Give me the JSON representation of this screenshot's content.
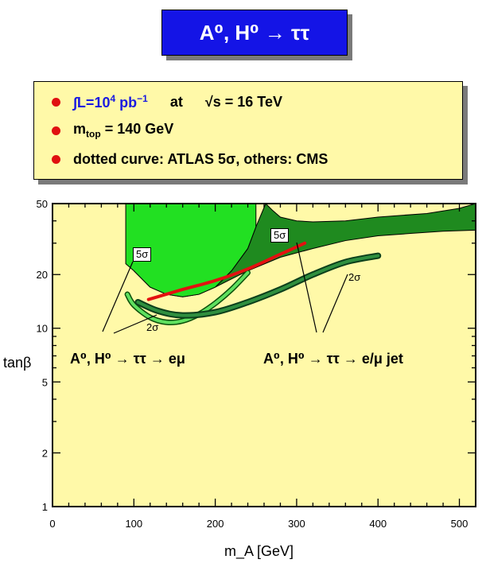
{
  "title": "A⁰, H⁰ → ττ",
  "info": {
    "line1_lumi": "∫L=10",
    "line1_lumi_exp": "4",
    "line1_unit": "pb",
    "line1_unit_exp": "−1",
    "line1_at": "at",
    "line1_energy": "√s = 16 TeV",
    "line2_m": "m",
    "line2_sub": "top",
    "line2_val": "= 140 GeV",
    "line3": "dotted curve: ATLAS 5σ,  others: CMS"
  },
  "colors": {
    "plot_bg": "#fff9a8",
    "light_green": "#22e022",
    "dark_green": "#1f8a1f",
    "atlas_red": "#e41010",
    "curve_light": "#5fe05f",
    "curve_dark": "#2f8f3f",
    "title_blue": "#1414e6",
    "bullet_red": "#e01010"
  },
  "annotations": {
    "left_channel": "A⁰, H⁰ → ττ → eμ",
    "right_channel": "A⁰, H⁰ → ττ → e/μ jet",
    "label_5sigma_left": "5σ",
    "label_5sigma_right": "5σ",
    "label_2sigma_left": "2σ",
    "label_2sigma_right": "2σ"
  },
  "chart_data": {
    "type": "area",
    "title": "",
    "xlabel": "m_A [GeV]",
    "ylabel": "tanβ",
    "xlim": [
      0,
      520
    ],
    "ylim": [
      1,
      50
    ],
    "yscale": "log",
    "grid": false,
    "x_ticks": [
      0,
      100,
      200,
      300,
      400,
      500
    ],
    "y_ticks": [
      1,
      2,
      5,
      10,
      20,
      50
    ],
    "series": [
      {
        "name": "5σ",
        "kind": "filled-region",
        "x": [
          90,
          90,
          100,
          120,
          140,
          160,
          180,
          200,
          220,
          240,
          250,
          250
        ],
        "y": [
          50,
          23,
          21,
          17,
          15.5,
          15,
          15.5,
          17,
          21,
          28,
          37,
          50
        ]
      },
      {
        "name": "5σ",
        "kind": "filled-region",
        "x": [
          100,
          120,
          140,
          160,
          180,
          200,
          240,
          280,
          320,
          360,
          400,
          440,
          480,
          520,
          520,
          500,
          460,
          400,
          360,
          320,
          300,
          280,
          270,
          262,
          250,
          240,
          220,
          200,
          180,
          160,
          140,
          120,
          100
        ],
        "y": [
          21,
          17,
          15.5,
          15,
          15.5,
          17,
          21,
          25,
          28,
          31,
          33,
          34,
          35,
          35.5,
          50,
          47,
          44,
          42,
          40,
          39.5,
          40,
          42,
          46,
          50,
          37,
          28,
          21,
          17,
          15.5,
          15,
          15.5,
          17,
          21
        ]
      },
      {
        "name": "5σ",
        "kind": "line",
        "x": [
          118,
          160,
          200,
          240,
          280,
          310
        ],
        "y": [
          14.5,
          16.5,
          18.5,
          21.5,
          26,
          30
        ]
      },
      {
        "name": "2σ",
        "kind": "line",
        "x": [
          92,
          100,
          120,
          140,
          160,
          180,
          200,
          220,
          240
        ],
        "y": [
          15.5,
          13.5,
          11.5,
          10.8,
          11,
          12,
          13.8,
          16.5,
          20.5
        ]
      },
      {
        "name": "2σ",
        "kind": "line",
        "x": [
          105,
          130,
          160,
          200,
          240,
          280,
          320,
          360,
          400
        ],
        "y": [
          14,
          12.5,
          11.8,
          12.3,
          14,
          16.5,
          20,
          23.5,
          25.5
        ]
      }
    ]
  }
}
